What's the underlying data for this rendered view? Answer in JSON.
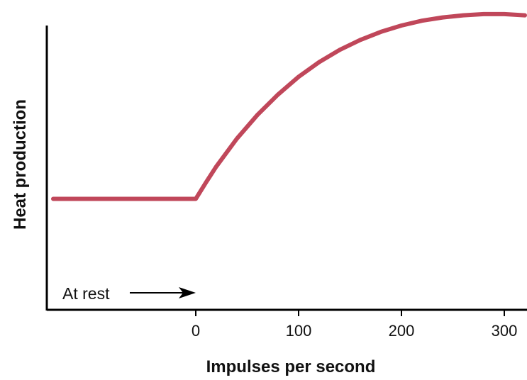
{
  "chart_data": {
    "type": "line",
    "title": "",
    "xlabel": "Impulses per second",
    "ylabel": "Heat production",
    "xlim": [
      -140,
      320
    ],
    "ylim": [
      0,
      100
    ],
    "x_ticks": [
      0,
      100,
      200,
      300
    ],
    "x_tick_labels": [
      "0",
      "100",
      "200",
      "300"
    ],
    "y_ticks": [],
    "grid": false,
    "legend": "none",
    "series": [
      {
        "color": "#c0475a",
        "x": [
          -140,
          0,
          10,
          20,
          40,
          60,
          80,
          100,
          120,
          140,
          160,
          180,
          200,
          220,
          240,
          260,
          280,
          300,
          320
        ],
        "y": [
          37,
          37,
          42.5,
          47.8,
          57.1,
          65.0,
          71.8,
          77.7,
          82.6,
          86.7,
          90.0,
          92.7,
          94.8,
          96.4,
          97.5,
          98.2,
          98.6,
          98.6,
          98.2
        ]
      }
    ],
    "annotations": [
      {
        "text": "At rest",
        "arrow_to_x": 0,
        "arrow_direction": "right"
      }
    ]
  }
}
